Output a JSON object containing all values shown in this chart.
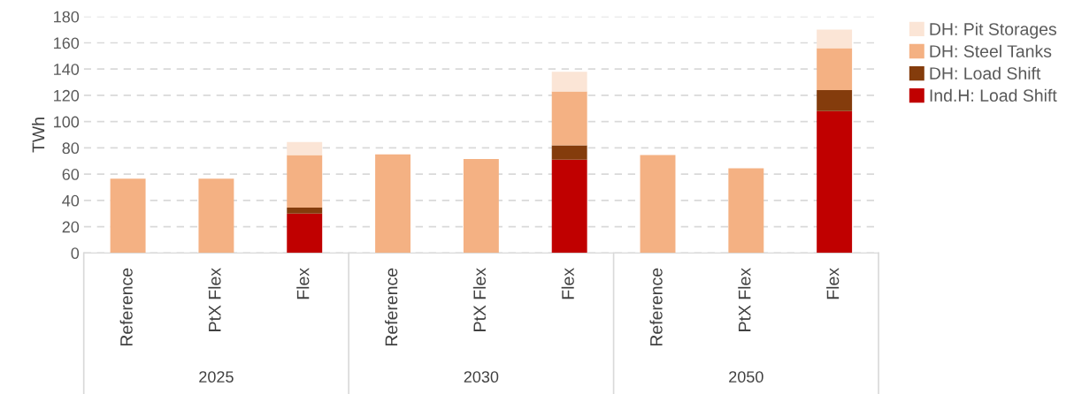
{
  "chart_data": {
    "type": "bar",
    "stacked": true,
    "ylabel": "TWh",
    "categories": [
      "Reference",
      "PtX Flex",
      "Flex",
      "Reference",
      "PtX Flex",
      "Flex",
      "Reference",
      "PtX Flex",
      "Flex"
    ],
    "series": [
      {
        "name": "Ind.H: Load Shift",
        "color": "#c00000",
        "values": [
          null,
          null,
          30,
          null,
          null,
          71,
          null,
          null,
          108
        ]
      },
      {
        "name": "DH: Load Shift",
        "color": "#843c0c",
        "values": [
          null,
          null,
          4.5,
          null,
          null,
          11,
          null,
          null,
          16
        ]
      },
      {
        "name": "DH: Steel Tanks",
        "color": "#f4b183",
        "values": [
          56.5,
          56.5,
          40,
          75,
          71.5,
          41,
          74.5,
          64.5,
          32
        ]
      },
      {
        "name": "DH: Pit Storages",
        "color": "#fbe5d6",
        "values": [
          null,
          null,
          10,
          null,
          null,
          15,
          null,
          null,
          14
        ]
      }
    ],
    "annotations": [
      "2025",
      "2030",
      "2050"
    ],
    "ylim": [
      0,
      180
    ],
    "yticks": [
      0,
      20,
      40,
      60,
      80,
      100,
      120,
      140,
      160,
      180
    ],
    "grid": "y",
    "legend": "top right"
  }
}
